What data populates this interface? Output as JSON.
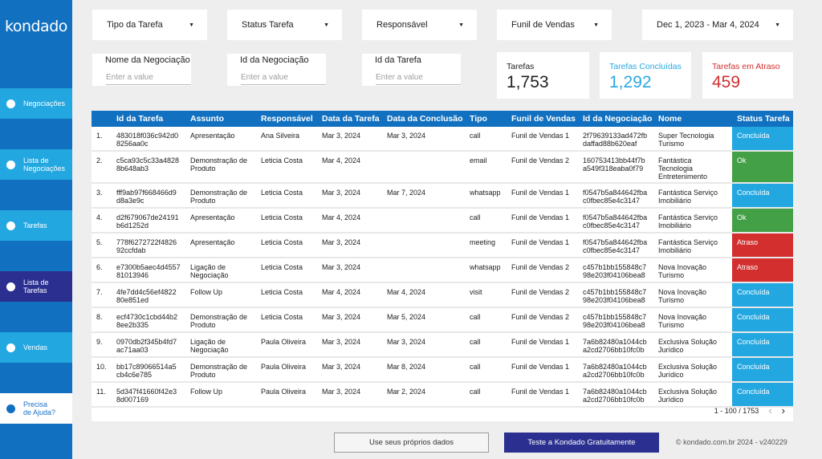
{
  "sidebar": {
    "logo": "kondado",
    "items": [
      {
        "label": "Negociações",
        "state": "light"
      },
      {
        "label": "Lista de\nNegociações",
        "state": "light"
      },
      {
        "label": "Tarefas",
        "state": "light"
      },
      {
        "label": "Lista de\nTarefas",
        "state": "active"
      },
      {
        "label": "Vendas",
        "state": "light"
      },
      {
        "label": "Precisa\nde Ajuda?",
        "state": "help"
      }
    ]
  },
  "filters": [
    "Tipo da Tarefa",
    "Status Tarefa",
    "Responsável",
    "Funil de Vendas",
    "Dec 1, 2023 - Mar 4, 2024"
  ],
  "inputs": [
    {
      "label": "Nome da Negociação",
      "placeholder": "Enter a value"
    },
    {
      "label": "Id da Negociação",
      "placeholder": "Enter a value"
    },
    {
      "label": "Id da Tarefa",
      "placeholder": "Enter a value"
    }
  ],
  "kpis": [
    {
      "title": "Tarefas",
      "value": "1,753",
      "color": "#212121"
    },
    {
      "title": "Tarefas Concluídas",
      "value": "1,292",
      "color": "#29a8e0"
    },
    {
      "title": "Tarefas em Atraso",
      "value": "459",
      "color": "#d32f2f"
    }
  ],
  "table": {
    "headers": [
      "Id da Tarefa",
      "Assunto",
      "Responsável",
      "Data da Tarefa",
      "Data da Conclusão",
      "Tipo",
      "Funil de Vendas",
      "Id da Negociação",
      "Nome",
      "Status Tarefa"
    ],
    "rows": [
      [
        "1.",
        "483018f036c942d0\n8256aa0c",
        "Apresentação",
        "Ana Silveira",
        "Mar 3, 2024",
        "Mar 3, 2024",
        "call",
        "Funil de Vendas 1",
        "2f79639133ad472fb\ndaffad88b620eaf",
        "Super Tecnologia\nTurismo",
        "Concluída"
      ],
      [
        "2.",
        "c5ca93c5c33a4828\n8b648ab3",
        "Demonstração de\nProduto",
        "Leticia Costa",
        "Mar 4, 2024",
        "",
        "email",
        "Funil de Vendas 2",
        "160753413bb44f7b\na549f318eaba0f79",
        "Fantástica\nTecnologia\nEntretenimento",
        "Ok"
      ],
      [
        "3.",
        "fff9ab97f668466d9\nd8a3e9c",
        "Demonstração de\nProduto",
        "Leticia Costa",
        "Mar 3, 2024",
        "Mar 7, 2024",
        "whatsapp",
        "Funil de Vendas 1",
        "f0547b5a844642fba\nc0fbec85e4c3147",
        "Fantástica Serviço\nImobiliário",
        "Concluída"
      ],
      [
        "4.",
        "d2f679067de24191\nb6d1252d",
        "Apresentação",
        "Leticia Costa",
        "Mar 4, 2024",
        "",
        "call",
        "Funil de Vendas 1",
        "f0547b5a844642fba\nc0fbec85e4c3147",
        "Fantástica Serviço\nImobiliário",
        "Ok"
      ],
      [
        "5.",
        "778f6272722f4826\n92ccfdab",
        "Apresentação",
        "Leticia Costa",
        "Mar 3, 2024",
        "",
        "meeting",
        "Funil de Vendas 1",
        "f0547b5a844642fba\nc0fbec85e4c3147",
        "Fantástica Serviço\nImobiliário",
        "Atraso"
      ],
      [
        "6.",
        "e7300b5aec4d4557\n81013946",
        "Ligação de\nNegociação",
        "Leticia Costa",
        "Mar 3, 2024",
        "",
        "whatsapp",
        "Funil de Vendas 2",
        "c457b1bb155848c7\n98e203f04106bea8",
        "Nova Inovação\nTurismo",
        "Atraso"
      ],
      [
        "7.",
        "4fe7dd4c56ef4822\n80e851ed",
        "Follow Up",
        "Leticia Costa",
        "Mar 4, 2024",
        "Mar 4, 2024",
        "visit",
        "Funil de Vendas 2",
        "c457b1bb155848c7\n98e203f04106bea8",
        "Nova Inovação\nTurismo",
        "Concluída"
      ],
      [
        "8.",
        "ecf4730c1cbd44b2\n8ee2b335",
        "Demonstração de\nProduto",
        "Leticia Costa",
        "Mar 3, 2024",
        "Mar 5, 2024",
        "call",
        "Funil de Vendas 2",
        "c457b1bb155848c7\n98e203f04106bea8",
        "Nova Inovação\nTurismo",
        "Concluída"
      ],
      [
        "9.",
        "0970db2f345b4fd7\nac71aa03",
        "Ligação de\nNegociação",
        "Paula Oliveira",
        "Mar 3, 2024",
        "Mar 3, 2024",
        "call",
        "Funil de Vendas 1",
        "7a6b82480a1044cb\na2cd2706bb10fc0b",
        "Exclusiva Solução\nJurídico",
        "Concluída"
      ],
      [
        "10.",
        "bb17c89066514a5\ncb4c6e785",
        "Demonstração de\nProduto",
        "Paula Oliveira",
        "Mar 3, 2024",
        "Mar 8, 2024",
        "call",
        "Funil de Vendas 1",
        "7a6b82480a1044cb\na2cd2706bb10fc0b",
        "Exclusiva Solução\nJurídico",
        "Concluída"
      ],
      [
        "11.",
        "5d347f41660f42e3\n8d007169",
        "Follow Up",
        "Paula Oliveira",
        "Mar 3, 2024",
        "Mar 2, 2024",
        "call",
        "Funil de Vendas 1",
        "7a6b82480a1044cb\na2cd2706bb10fc0b",
        "Exclusiva Solução\nJurídico",
        "Concluída"
      ]
    ],
    "pagination": "1 - 100 / 1753",
    "prev": "‹",
    "next": "›"
  },
  "status_colors": {
    "Concluída": "#23a7e0",
    "Ok": "#43a047",
    "Atraso": "#d32f2f"
  },
  "buttons": {
    "own_data": "Use seus próprios dados",
    "trial": "Teste a Kondado Gratuitamente"
  },
  "footer": "© kondado.com.br 2024 - v240229"
}
